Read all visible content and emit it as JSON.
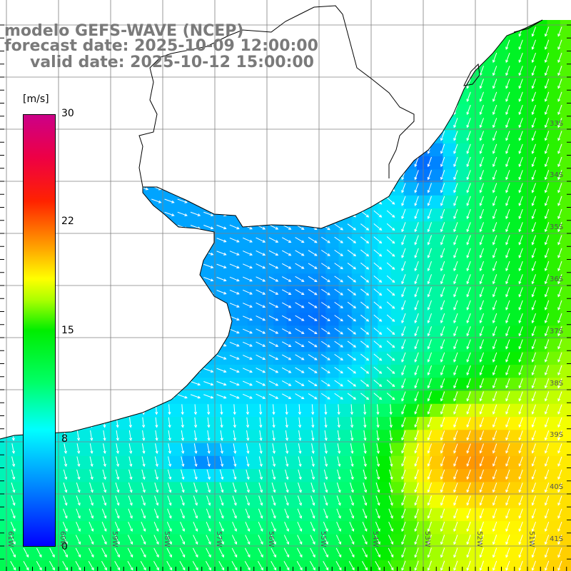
{
  "title": {
    "line1": "modelo GEFS-WAVE (NCEP)",
    "line2": "forecast date: 2025-10-09 12:00:00",
    "line3": "valid date: 2025-10-12 15:00:00"
  },
  "colorbar": {
    "unit": "[m/s]",
    "ticks": [
      "30",
      "22",
      "15",
      "8",
      "0"
    ],
    "tick_values": [
      30,
      22,
      15,
      8,
      0
    ],
    "colors": [
      "#0000ff",
      "#0088ff",
      "#00ffff",
      "#00ff66",
      "#00ee00",
      "#aaff00",
      "#ffff00",
      "#ff9900",
      "#ff2200",
      "#ee0044",
      "#cc0088"
    ]
  },
  "lat_labels": [
    "33S",
    "34S",
    "35S",
    "36S",
    "37S",
    "38S",
    "39S",
    "40S",
    "41S"
  ],
  "lon_labels": [
    "61W",
    "60W",
    "59W",
    "58W",
    "57W",
    "56W",
    "55W",
    "54W",
    "53W",
    "52W",
    "51W"
  ],
  "colors": {
    "coast": "#000000",
    "grid": "#808080",
    "arrow": "#ffffff",
    "title": "#7a7a7a"
  }
}
